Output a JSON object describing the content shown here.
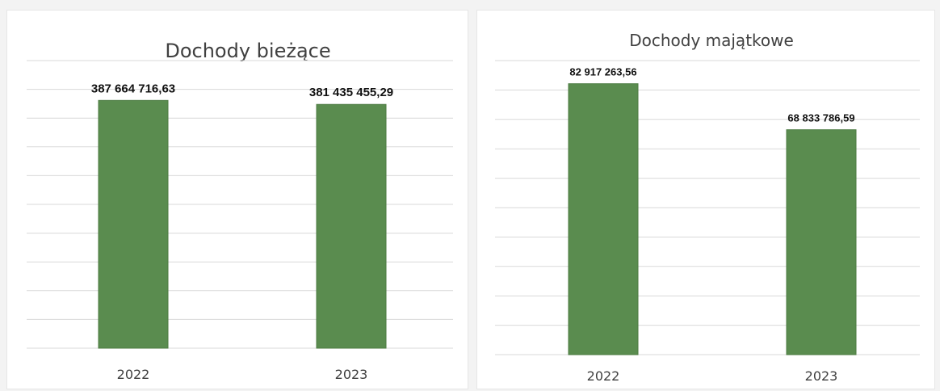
{
  "colors": {
    "bar": "#5a8c4f",
    "bar_edge": "#4c7b42",
    "grid": "#d9d9d9",
    "text": "#404040"
  },
  "chart_data": [
    {
      "type": "bar",
      "title": "Dochody bieżące",
      "categories": [
        "2022",
        "2023"
      ],
      "values": [
        387664716.63,
        381435455.29
      ],
      "data_labels": [
        "387 664 716,63",
        "381 435 455,29"
      ],
      "ylim": [
        0,
        450000000
      ],
      "grid": true,
      "legend": "none"
    },
    {
      "type": "bar",
      "title": "Dochody majątkowe",
      "categories": [
        "2022",
        "2023"
      ],
      "values": [
        82917263.56,
        68833786.59
      ],
      "data_labels": [
        "82 917 263,56",
        "68 833 786,59"
      ],
      "ylim": [
        0,
        90000000
      ],
      "grid": true,
      "legend": "none"
    }
  ]
}
